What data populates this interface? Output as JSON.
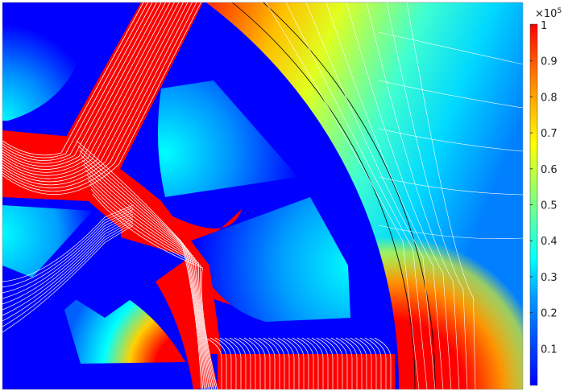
{
  "chart_data": {
    "type": "heatmap",
    "title": "",
    "xlabel": "",
    "ylabel": "",
    "colorbar": {
      "colormap": "jet",
      "range": [
        0,
        1
      ],
      "multiplier_label": "×10",
      "multiplier_exponent": "5",
      "ticks": [
        0.1,
        0.2,
        0.3,
        0.4,
        0.5,
        0.6,
        0.7,
        0.8,
        0.9,
        1
      ],
      "tick_labels": [
        "0.1",
        "0.2",
        "0.3",
        "0.4",
        "0.5",
        "0.6",
        "0.7",
        "0.8",
        "0.9",
        "1"
      ]
    },
    "overlay": "white streamlines with arrows",
    "colors": {
      "low": "#0000ff",
      "mid": "#00ffff",
      "high": "#ff0000",
      "streamline": "#ffffff"
    }
  }
}
